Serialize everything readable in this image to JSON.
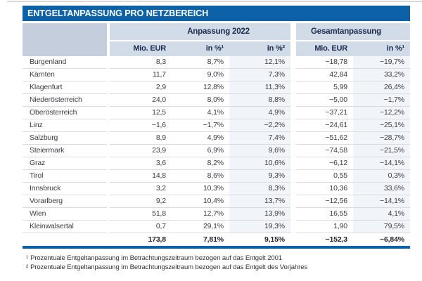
{
  "title": "ENTGELTANPASSUNG PRO NETZBEREICH",
  "colors": {
    "title_bar": "#0d62a7",
    "header_cell": "#d2dbe8",
    "corner_cell": "#c4cedd",
    "row_separator": "#d9dde3",
    "column_tint": "#f1f4f9",
    "bottom_rule": "#0d62a7"
  },
  "table": {
    "groups": [
      {
        "label": "Anpassung 2022"
      },
      {
        "label": "Gesamtanpassung"
      }
    ],
    "columns": [
      "Mio. EUR",
      "in %¹",
      "in %²",
      "Mio. EUR",
      "in %¹"
    ],
    "rows": [
      {
        "name": "Burgenland",
        "values": [
          "8,3",
          "8,7%",
          "12,1%",
          "−18,78",
          "−19,7%"
        ]
      },
      {
        "name": "Kärnten",
        "values": [
          "11,7",
          "9,0%",
          "7,3%",
          "42,84",
          "33,2%"
        ]
      },
      {
        "name": "Klagenfurt",
        "values": [
          "2,9",
          "12,8%",
          "11,3%",
          "5,99",
          "26,4%"
        ]
      },
      {
        "name": "Niederösterreich",
        "values": [
          "24,0",
          "8,0%",
          "8,8%",
          "−5,00",
          "−1,7%"
        ]
      },
      {
        "name": "Oberösterreich",
        "values": [
          "12,5",
          "4,1%",
          "4,9%",
          "−37,21",
          "−12,2%"
        ]
      },
      {
        "name": "Linz",
        "values": [
          "−1,6",
          "−1,7%",
          "−2,2%",
          "−24,61",
          "−25,1%"
        ]
      },
      {
        "name": "Salzburg",
        "values": [
          "8,9",
          "4,9%",
          "7,4%",
          "−51,62",
          "−28,7%"
        ]
      },
      {
        "name": "Steiermark",
        "values": [
          "23,9",
          "6,9%",
          "9,6%",
          "−74,58",
          "−21,5%"
        ]
      },
      {
        "name": "Graz",
        "values": [
          "3,6",
          "8,2%",
          "10,6%",
          "−6,12",
          "−14,1%"
        ]
      },
      {
        "name": "Tirol",
        "values": [
          "14,8",
          "8,6%",
          "9,3%",
          "0,55",
          "0,3%"
        ]
      },
      {
        "name": "Innsbruck",
        "values": [
          "3,2",
          "10,3%",
          "8,3%",
          "10,36",
          "33,6%"
        ]
      },
      {
        "name": "Vorarlberg",
        "values": [
          "9,2",
          "10,4%",
          "13,7%",
          "−12,56",
          "−14,1%"
        ]
      },
      {
        "name": "Wien",
        "values": [
          "51,8",
          "12,7%",
          "13,9%",
          "16,55",
          "4,1%"
        ]
      },
      {
        "name": "Kleinwalsertal",
        "values": [
          "0,7",
          "29,1%",
          "19,3%",
          "1,90",
          "79,5%"
        ]
      }
    ],
    "total": {
      "name": "",
      "values": [
        "173,8",
        "7,81%",
        "9,15%",
        "−152,3",
        "−6,84%"
      ]
    }
  },
  "footnotes": [
    {
      "marker": "¹",
      "text": "Prozentuale Entgeltanpassung im Betrachtungszeitraum bezogen auf das Entgelt 2001"
    },
    {
      "marker": "²",
      "text": "Prozentuale Entgeltanpassung im Betrachtungszeitraum bezogen auf das Entgelt des Vorjahres"
    }
  ]
}
